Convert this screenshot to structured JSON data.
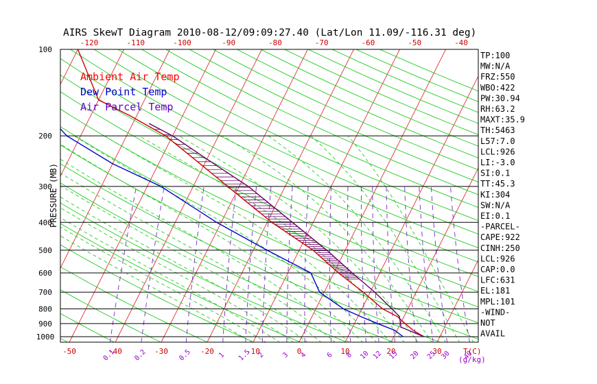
{
  "chart_data": {
    "type": "line",
    "title": "AIRS SkewT Diagram 2010-08-12/09:09:27.40 (Lat/Lon 11.09/-116.31 deg)",
    "ylabel": "PRESSURE (MB)",
    "xlabel": "T(C)",
    "mixing_ratio_unit": "(g/kg)",
    "y_scale": "log",
    "ylim": [
      1030,
      100
    ],
    "bottom_temp_range": [
      -50,
      40
    ],
    "top_temp_range": [
      -120,
      -40
    ],
    "pressure_ticks": [
      100,
      200,
      300,
      400,
      500,
      600,
      700,
      800,
      900,
      1000
    ],
    "pressure_lines": [
      200,
      300,
      400,
      500,
      600,
      700,
      800,
      900,
      1000
    ],
    "bottom_temp_ticks": [
      -50,
      -40,
      -30,
      -20,
      -10,
      0,
      10,
      20,
      30
    ],
    "top_temp_ticks": [
      -120,
      -110,
      -100,
      -90,
      -80,
      -70,
      -60,
      -50,
      -40
    ],
    "mixing_ratio_labels": [
      "0.1",
      "0.2",
      "0.5",
      "1",
      "1.5",
      "2",
      "3",
      "4",
      "6",
      "8",
      "10",
      "12",
      "15",
      "20",
      "25",
      "30",
      "40"
    ],
    "legend": [
      {
        "name": "Ambient Air Temp",
        "color": "#ff0000"
      },
      {
        "name": "Dew Point Temp",
        "color": "#0000cc"
      },
      {
        "name": "Air Parcel Temp",
        "color": "#6600cc"
      }
    ],
    "series": [
      {
        "name": "Ambient Air Temp",
        "color": "#cc0000",
        "points": [
          [
            1000,
            26.5
          ],
          [
            950,
            23.5
          ],
          [
            900,
            21.0
          ],
          [
            850,
            18.5
          ],
          [
            800,
            14.5
          ],
          [
            700,
            8.5
          ],
          [
            600,
            1.0
          ],
          [
            500,
            -7.0
          ],
          [
            400,
            -19.0
          ],
          [
            300,
            -32.5
          ],
          [
            250,
            -41.0
          ],
          [
            200,
            -51.5
          ],
          [
            170,
            -61.5
          ],
          [
            150,
            -70.0
          ],
          [
            100,
            -80.0
          ]
        ]
      },
      {
        "name": "Dew Point Temp",
        "color": "#0000cc",
        "points": [
          [
            1000,
            22.0
          ],
          [
            950,
            19.5
          ],
          [
            900,
            15.0
          ],
          [
            850,
            10.5
          ],
          [
            800,
            6.0
          ],
          [
            700,
            -1.0
          ],
          [
            600,
            -5.0
          ],
          [
            500,
            -17.0
          ],
          [
            400,
            -31.0
          ],
          [
            300,
            -47.0
          ],
          [
            250,
            -60.0
          ],
          [
            200,
            -73.0
          ],
          [
            150,
            -84.0
          ],
          [
            120,
            -88.5
          ],
          [
            100,
            -90.5
          ]
        ]
      },
      {
        "name": "Air Parcel Temp",
        "color": "#660066",
        "points": [
          [
            1000,
            26.5
          ],
          [
            926,
            20.5
          ],
          [
            850,
            19.0
          ],
          [
            800,
            16.5
          ],
          [
            700,
            11.0
          ],
          [
            600,
            4.0
          ],
          [
            500,
            -4.0
          ],
          [
            400,
            -14.5
          ],
          [
            300,
            -28.0
          ],
          [
            250,
            -38.0
          ],
          [
            200,
            -50.0
          ],
          [
            181,
            -56.5
          ]
        ]
      }
    ],
    "indices": [
      "TP:100",
      "MW:N/A",
      "FRZ:550",
      "WBO:422",
      "PW:30.94",
      "RH:63.2",
      "MAXT:35.9",
      "TH:5463",
      "L57:7.0",
      "LCL:926",
      "LI:-3.0",
      "SI:0.1",
      "TT:45.3",
      "KI:304",
      "SW:N/A",
      "EI:0.1",
      "-PARCEL-",
      "CAPE:922",
      "CINH:250",
      "LCL:926",
      "CAP:0.0",
      "LFC:631",
      "EL:181",
      "MPL:101",
      "-WIND-",
      "NOT",
      "AVAIL"
    ]
  }
}
